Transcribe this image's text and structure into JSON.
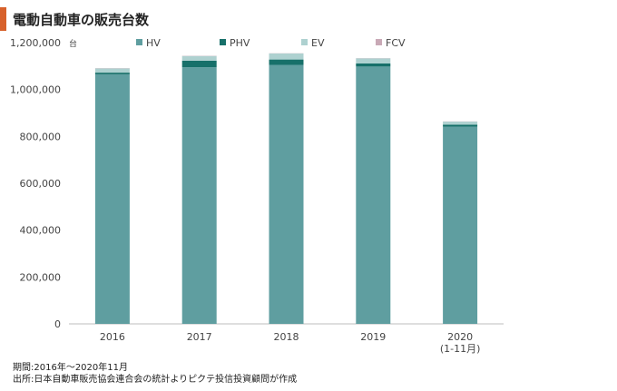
{
  "title": "電動自動車の販売台数",
  "notes": {
    "period": "期間:2016年～2020年11月",
    "source": "出所:日本自動車販売協会連合会の統計よりピクテ投信投資顧問が作成"
  },
  "chart_data": {
    "type": "bar",
    "stacked": true,
    "unit_label": "台",
    "categories": [
      "2016",
      "2017",
      "2018",
      "2019",
      "2020\n(1-11月)"
    ],
    "series": [
      {
        "name": "HV",
        "color": "#5f9ea0",
        "values": [
          1065000,
          1095000,
          1105000,
          1098000,
          842000
        ]
      },
      {
        "name": "PHV",
        "color": "#17706a",
        "values": [
          7000,
          28000,
          23000,
          13000,
          8000
        ]
      },
      {
        "name": "EV",
        "color": "#aed1d0",
        "values": [
          18000,
          20000,
          26000,
          22000,
          13000
        ]
      },
      {
        "name": "FCV",
        "color": "#c9a9b6",
        "values": [
          1000,
          1000,
          700,
          700,
          800
        ]
      }
    ],
    "ylim": [
      0,
      1200000
    ],
    "yticks": [
      "0",
      "200,000",
      "400,000",
      "600,000",
      "800,000",
      "1,000,000",
      "1,200,000"
    ],
    "legend_position": "top",
    "grid": false
  }
}
